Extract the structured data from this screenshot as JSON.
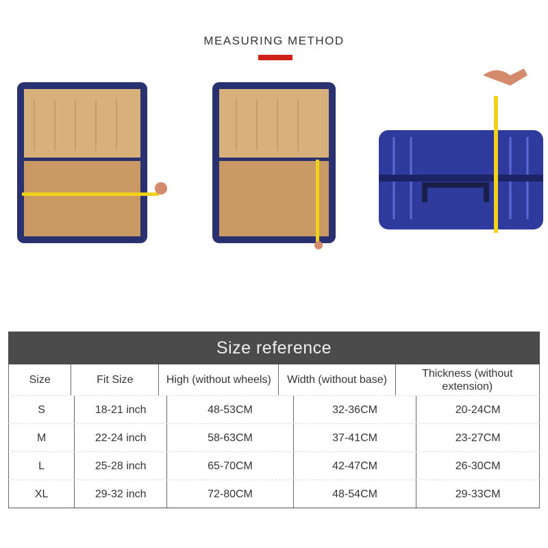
{
  "title": "MEASURING METHOD",
  "accent_color": "#d0201a",
  "photos": [
    {
      "name": "open-suitcase-width-measure"
    },
    {
      "name": "open-suitcase-height-measure"
    },
    {
      "name": "closed-suitcase-thickness-measure"
    }
  ],
  "size_table": {
    "title": "Size reference",
    "columns": [
      "Size",
      "Fit Size",
      "High (without wheels)",
      "Width (without base)",
      "Thickness (without extension)"
    ],
    "rows": [
      [
        "S",
        "18-21 inch",
        "48-53CM",
        "32-36CM",
        "20-24CM"
      ],
      [
        "M",
        "22-24 inch",
        "58-63CM",
        "37-41CM",
        "23-27CM"
      ],
      [
        "L",
        "25-28 inch",
        "65-70CM",
        "42-47CM",
        "26-30CM"
      ],
      [
        "XL",
        "29-32 inch",
        "72-80CM",
        "48-54CM",
        "29-33CM"
      ]
    ]
  }
}
